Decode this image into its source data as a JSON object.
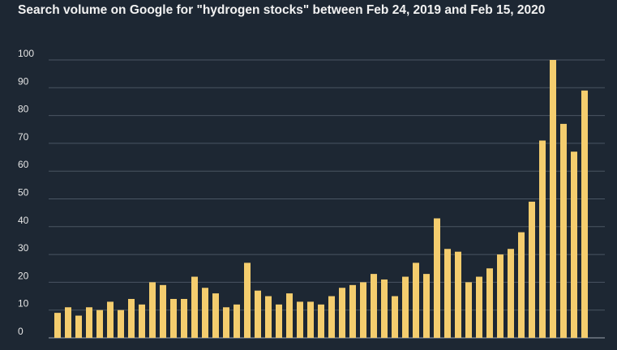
{
  "chart_data": {
    "type": "bar",
    "title": "Search volume on Google for \"hydrogen stocks\" between Feb 24, 2019 and Feb 15, 2020",
    "xlabel": "",
    "ylabel": "",
    "ylim": [
      0,
      100
    ],
    "yticks": [
      0,
      10,
      20,
      30,
      40,
      50,
      60,
      70,
      80,
      90,
      100
    ],
    "grid": true,
    "bar_color": "#f4cd6e",
    "background": "#1d2733",
    "values": [
      9,
      11,
      8,
      11,
      10,
      13,
      10,
      14,
      12,
      20,
      19,
      14,
      14,
      22,
      18,
      16,
      11,
      12,
      27,
      17,
      15,
      12,
      16,
      13,
      13,
      12,
      15,
      18,
      19,
      20,
      23,
      21,
      15,
      22,
      27,
      23,
      43,
      32,
      31,
      20,
      22,
      25,
      30,
      32,
      38,
      49,
      71,
      100,
      77,
      67,
      89
    ]
  }
}
